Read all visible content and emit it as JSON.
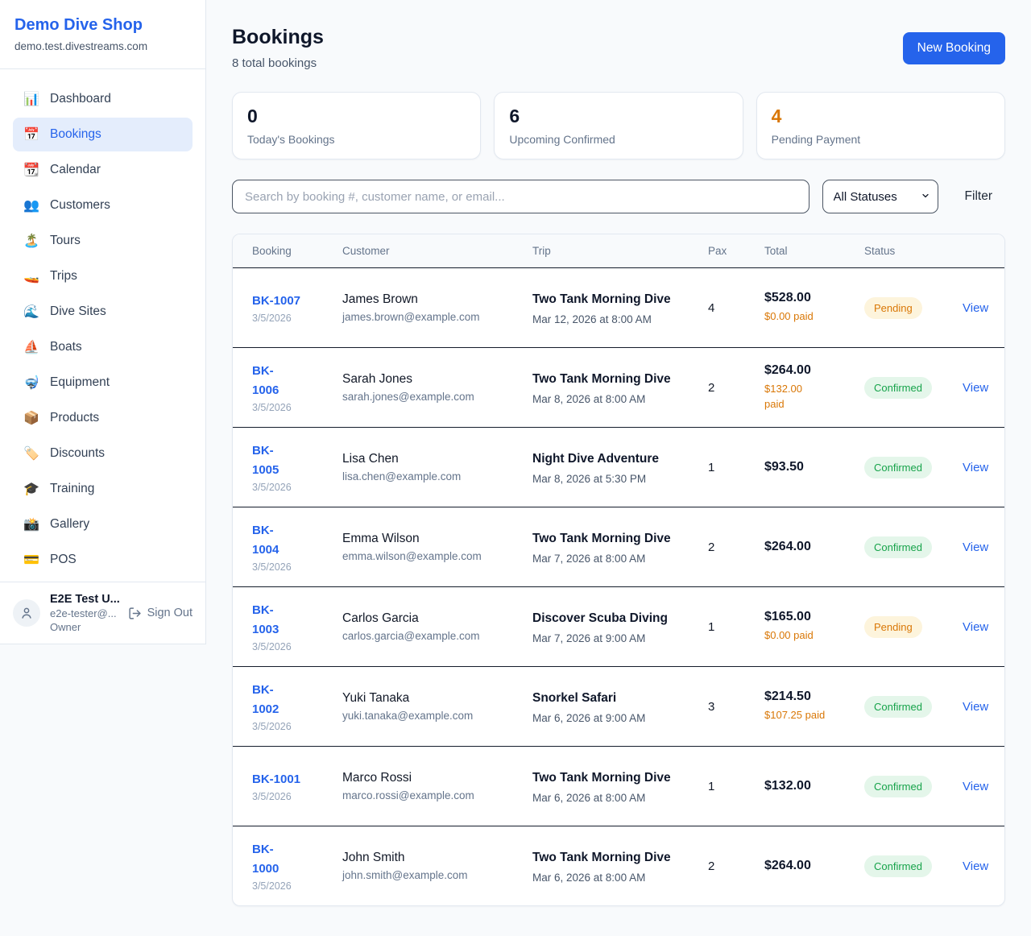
{
  "colors": {
    "accent_blue": "#2563eb",
    "pending_text": "#d97706",
    "pending_bg": "#fdf4dc",
    "confirmed_text": "#16a34a",
    "confirmed_bg": "#e4f6ea",
    "paid_orange": "#d97706",
    "link_blue": "#2563eb",
    "highlight_stat_orange": "#d97706"
  },
  "sidebar": {
    "shop_name": "Demo Dive Shop",
    "shop_domain": "demo.test.divestreams.com",
    "items": [
      {
        "label": "Dashboard",
        "icon": "bar-chart-icon",
        "glyph": "📊",
        "active": false
      },
      {
        "label": "Bookings",
        "icon": "calendar-icon",
        "glyph": "📅",
        "active": true
      },
      {
        "label": "Calendar",
        "icon": "tear-off-calendar-icon",
        "glyph": "📆",
        "active": false
      },
      {
        "label": "Customers",
        "icon": "people-icon",
        "glyph": "👥",
        "active": false
      },
      {
        "label": "Tours",
        "icon": "island-icon",
        "glyph": "🏝️",
        "active": false
      },
      {
        "label": "Trips",
        "icon": "speedboat-icon",
        "glyph": "🚤",
        "active": false
      },
      {
        "label": "Dive Sites",
        "icon": "wave-icon",
        "glyph": "🌊",
        "active": false
      },
      {
        "label": "Boats",
        "icon": "sailboat-icon",
        "glyph": "⛵",
        "active": false
      },
      {
        "label": "Equipment",
        "icon": "diving-mask-icon",
        "glyph": "🤿",
        "active": false
      },
      {
        "label": "Products",
        "icon": "package-icon",
        "glyph": "📦",
        "active": false
      },
      {
        "label": "Discounts",
        "icon": "label-tag-icon",
        "glyph": "🏷️",
        "active": false
      },
      {
        "label": "Training",
        "icon": "graduation-cap-icon",
        "glyph": "🎓",
        "active": false
      },
      {
        "label": "Gallery",
        "icon": "camera-flash-icon",
        "glyph": "📸",
        "active": false
      },
      {
        "label": "POS",
        "icon": "credit-card-icon",
        "glyph": "💳",
        "active": false
      }
    ],
    "user": {
      "name": "E2E Test U...",
      "email": "e2e-tester@...",
      "role": "Owner",
      "sign_out_label": "Sign Out"
    }
  },
  "header": {
    "title": "Bookings",
    "subtitle": "8 total bookings",
    "new_booking_label": "New Booking"
  },
  "stats": [
    {
      "value": "0",
      "label": "Today's Bookings",
      "highlight": false
    },
    {
      "value": "6",
      "label": "Upcoming Confirmed",
      "highlight": false
    },
    {
      "value": "4",
      "label": "Pending Payment",
      "highlight": true
    }
  ],
  "filters": {
    "search_placeholder": "Search by booking #, customer name, or email...",
    "status_value": "All Statuses",
    "filter_label": "Filter"
  },
  "table": {
    "columns": [
      "Booking",
      "Customer",
      "Trip",
      "Pax",
      "Total",
      "Status"
    ],
    "view_label": "View",
    "rows": [
      {
        "id": "BK-1007",
        "booked_date": "3/5/2026",
        "customer": "James Brown",
        "email": "james.brown@example.com",
        "trip": "Two Tank Morning Dive",
        "trip_datetime": "Mar 12, 2026 at 8:00 AM",
        "pax": "4",
        "total": "$528.00",
        "paid": "$0.00 paid",
        "status": "Pending"
      },
      {
        "id": "BK-\n1006",
        "booked_date": "3/5/2026",
        "customer": "Sarah Jones",
        "email": "sarah.jones@example.com",
        "trip": "Two Tank Morning Dive",
        "trip_datetime": "Mar 8, 2026 at 8:00 AM",
        "pax": "2",
        "total": "$264.00",
        "paid": "$132.00\npaid",
        "status": "Confirmed"
      },
      {
        "id": "BK-\n1005",
        "booked_date": "3/5/2026",
        "customer": "Lisa Chen",
        "email": "lisa.chen@example.com",
        "trip": "Night Dive Adventure",
        "trip_datetime": "Mar 8, 2026 at 5:30 PM",
        "pax": "1",
        "total": "$93.50",
        "paid": "",
        "status": "Confirmed"
      },
      {
        "id": "BK-\n1004",
        "booked_date": "3/5/2026",
        "customer": "Emma Wilson",
        "email": "emma.wilson@example.com",
        "trip": "Two Tank Morning Dive",
        "trip_datetime": "Mar 7, 2026 at 8:00 AM",
        "pax": "2",
        "total": "$264.00",
        "paid": "",
        "status": "Confirmed"
      },
      {
        "id": "BK-\n1003",
        "booked_date": "3/5/2026",
        "customer": "Carlos Garcia",
        "email": "carlos.garcia@example.com",
        "trip": "Discover Scuba Diving",
        "trip_datetime": "Mar 7, 2026 at 9:00 AM",
        "pax": "1",
        "total": "$165.00",
        "paid": "$0.00 paid",
        "status": "Pending"
      },
      {
        "id": "BK-\n1002",
        "booked_date": "3/5/2026",
        "customer": "Yuki Tanaka",
        "email": "yuki.tanaka@example.com",
        "trip": "Snorkel Safari",
        "trip_datetime": "Mar 6, 2026 at 9:00 AM",
        "pax": "3",
        "total": "$214.50",
        "paid": "$107.25 paid",
        "status": "Confirmed"
      },
      {
        "id": "BK-1001",
        "booked_date": "3/5/2026",
        "customer": "Marco Rossi",
        "email": "marco.rossi@example.com",
        "trip": "Two Tank Morning Dive",
        "trip_datetime": "Mar 6, 2026 at 8:00 AM",
        "pax": "1",
        "total": "$132.00",
        "paid": "",
        "status": "Confirmed"
      },
      {
        "id": "BK-\n1000",
        "booked_date": "3/5/2026",
        "customer": "John Smith",
        "email": "john.smith@example.com",
        "trip": "Two Tank Morning Dive",
        "trip_datetime": "Mar 6, 2026 at 8:00 AM",
        "pax": "2",
        "total": "$264.00",
        "paid": "",
        "status": "Confirmed"
      }
    ]
  }
}
